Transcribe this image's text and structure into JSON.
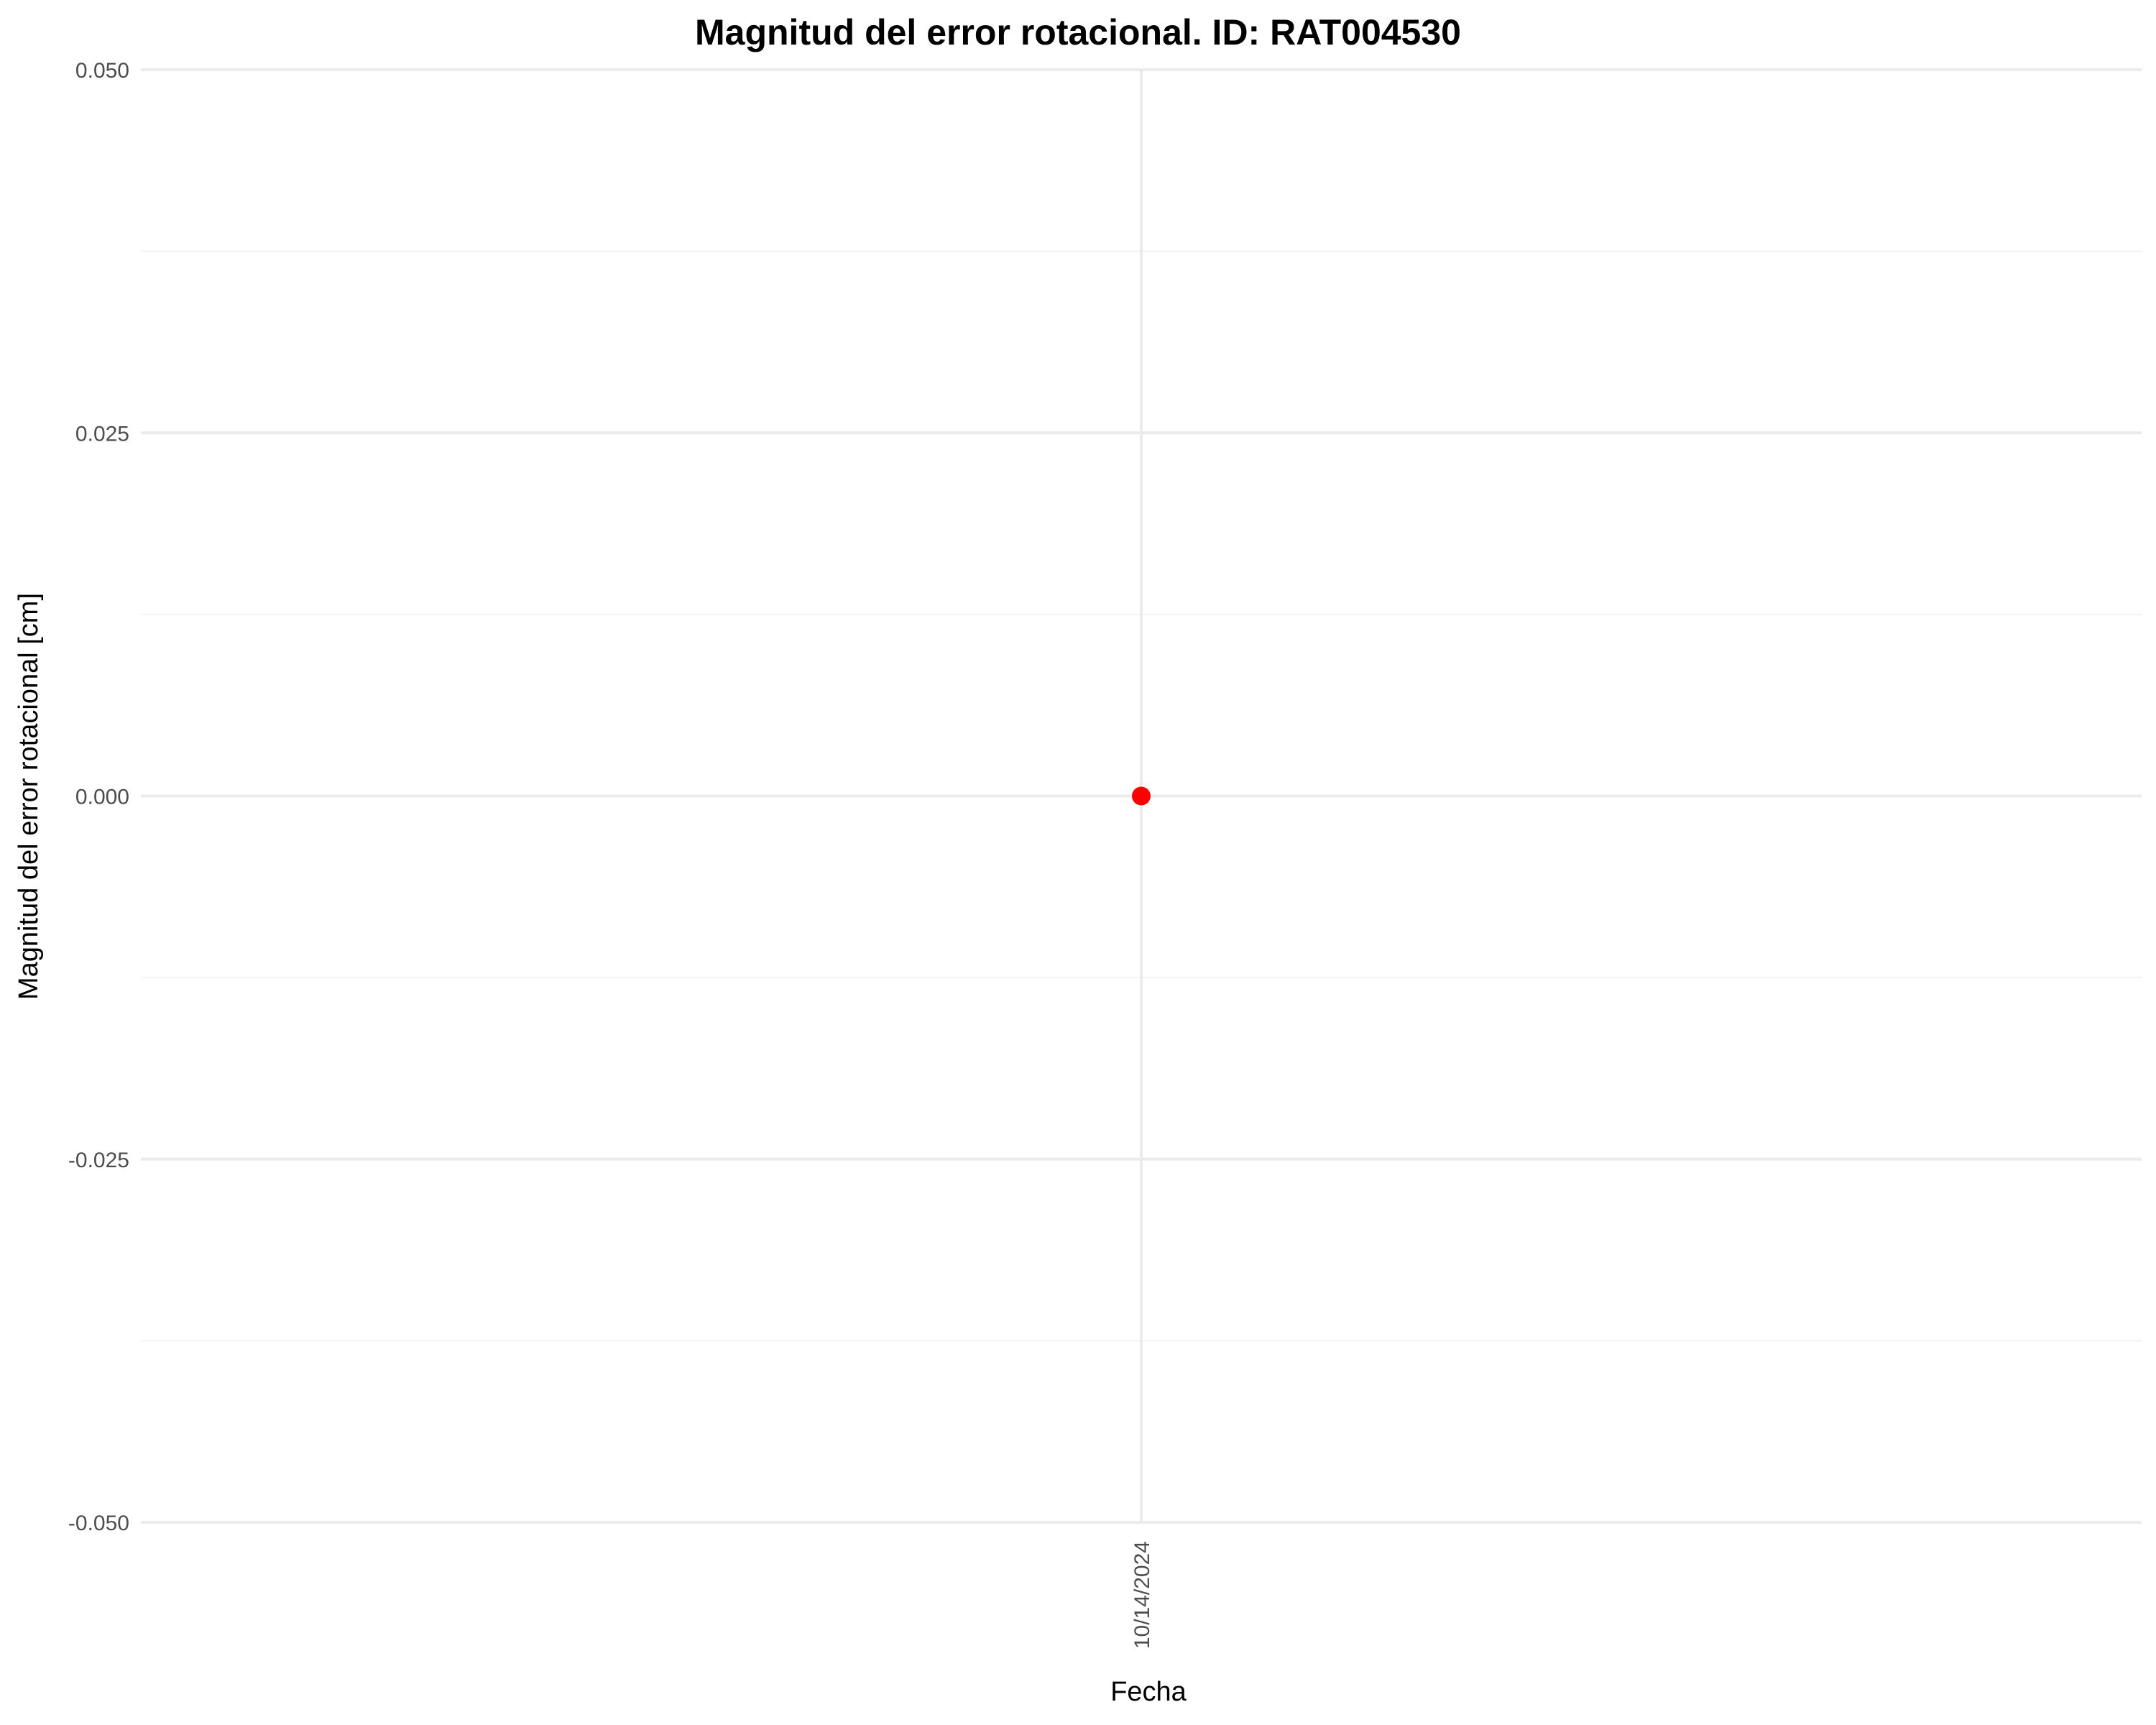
{
  "chart_data": {
    "type": "scatter",
    "title": "Magnitud del error rotacional. ID: RAT004530",
    "xlabel": "Fecha",
    "ylabel": "Magnitud del error rotacional [cm]",
    "x": [
      "10/14/2024"
    ],
    "series": [
      {
        "values": [
          0.0
        ],
        "color": "#ff0000"
      }
    ],
    "ylim": [
      -0.05,
      0.05
    ],
    "yticks": [
      {
        "value": -0.05,
        "label": "-0.050"
      },
      {
        "value": -0.025,
        "label": "-0.025"
      },
      {
        "value": 0.0,
        "label": "0.000"
      },
      {
        "value": 0.025,
        "label": "0.025"
      },
      {
        "value": 0.05,
        "label": "0.050"
      }
    ],
    "yminor": [
      -0.0375,
      -0.0125,
      0.0125,
      0.0375
    ],
    "grid": true,
    "legend": "none"
  },
  "colors": {
    "grid_major": "#ebebeb",
    "grid_minor": "#f3f3f3",
    "point": "#ff0000"
  }
}
